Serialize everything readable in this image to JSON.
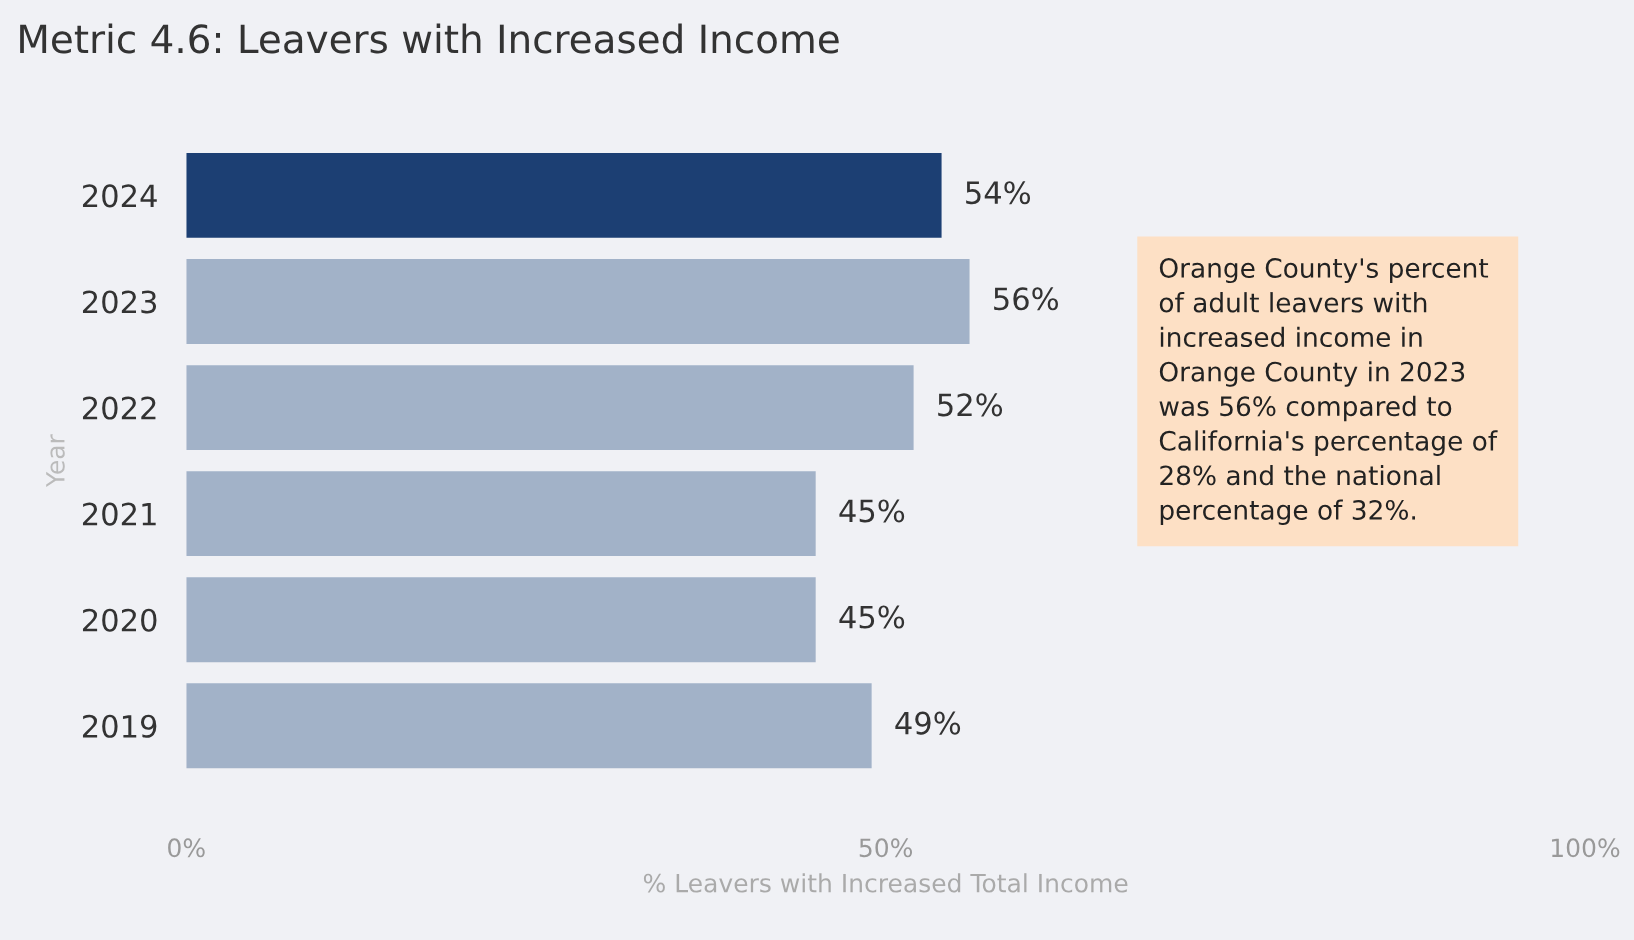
{
  "chart_data": {
    "type": "bar",
    "orientation": "horizontal",
    "title": "Metric 4.6: Leavers with Increased Income",
    "xlabel": "% Leavers with Increased Total Income",
    "ylabel": "Year",
    "categories": [
      "2024",
      "2023",
      "2022",
      "2021",
      "2020",
      "2019"
    ],
    "values": [
      54,
      56,
      52,
      45,
      45,
      49
    ],
    "colors": [
      "#1c3f73",
      "#a2b2c8",
      "#a2b2c8",
      "#a2b2c8",
      "#a2b2c8",
      "#a2b2c8"
    ],
    "value_labels": [
      "54%",
      "56%",
      "52%",
      "45%",
      "45%",
      "49%"
    ],
    "xlim": [
      0,
      100
    ],
    "xticks": [
      {
        "value": 0,
        "label": "0%"
      },
      {
        "value": 50,
        "label": "50%"
      },
      {
        "value": 100,
        "label": "100%"
      }
    ],
    "grid": false,
    "legend": false,
    "annotations": [
      "Orange County's percent\nof adult leavers with\nincreased income in\nOrange County in 2023\nwas 56% compared to\nCalifornia's percentage of\n28% and the national\npercentage of 32%."
    ]
  }
}
